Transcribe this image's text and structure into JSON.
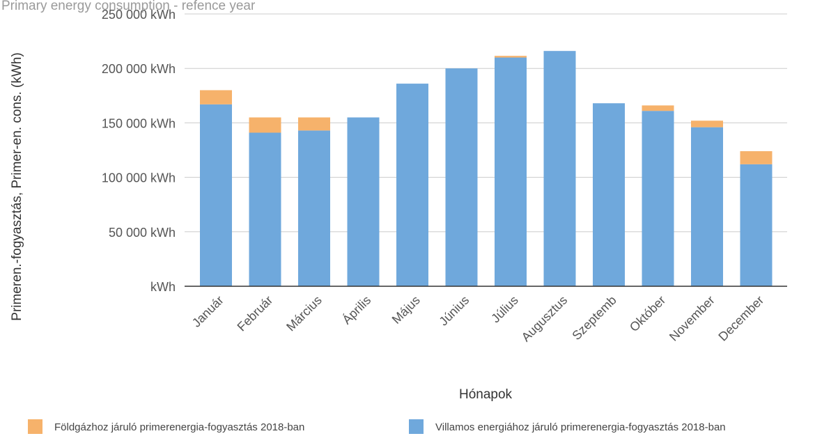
{
  "chart_data": {
    "type": "bar",
    "stacked": true,
    "title": "Primary energy consumption - refence year",
    "xlabel": "Hónapok",
    "ylabel": "Primeren.-fogyasztás, Primer-en. cons. (kWh)",
    "ylim": [
      0,
      250000
    ],
    "yticks": [
      {
        "value": 0,
        "label": "kWh"
      },
      {
        "value": 50000,
        "label": "50 000  kWh"
      },
      {
        "value": 100000,
        "label": "100 000  kWh"
      },
      {
        "value": 150000,
        "label": "150 000  kWh"
      },
      {
        "value": 200000,
        "label": "200 000  kWh"
      },
      {
        "value": 250000,
        "label": "250 000  kWh"
      }
    ],
    "grid": true,
    "legend_position": "bottom",
    "categories": [
      "Január",
      "Február",
      "Március",
      "Április",
      "Május",
      "Június",
      "Július",
      "Augusztus",
      "Szeptemb",
      "Október",
      "November",
      "December"
    ],
    "series": [
      {
        "name": "Villamos energiához járuló primerenergia-fogyasztás 2018-ban",
        "color": "#6fa8dc",
        "values": [
          167000,
          141000,
          143000,
          155000,
          186000,
          200000,
          210000,
          216000,
          168000,
          161000,
          146000,
          112000
        ]
      },
      {
        "name": "Földgázhoz járuló primerenergia-fogyasztás 2018-ban",
        "color": "#f6b26b",
        "values": [
          13000,
          14000,
          12000,
          0,
          0,
          0,
          1500,
          0,
          0,
          5000,
          6000,
          12000
        ]
      }
    ],
    "legend_order": [
      1,
      0
    ]
  }
}
